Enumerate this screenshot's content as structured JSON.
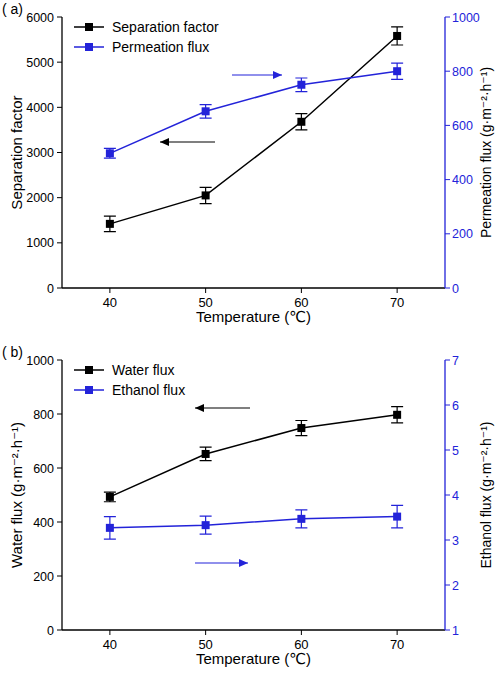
{
  "chart_data": [
    {
      "type": "line",
      "title": "( a)",
      "x_label": "Temperature (℃)",
      "y_label": "Separation factor",
      "y2_label": "Permeation flux (g·m⁻²·h⁻¹)",
      "x": [
        40,
        50,
        60,
        70
      ],
      "xlim": [
        35,
        75
      ],
      "xticks": [
        40,
        50,
        60,
        70
      ],
      "ylim": [
        0,
        6000
      ],
      "yticks": [
        0,
        1000,
        2000,
        3000,
        4000,
        5000,
        6000
      ],
      "y2lim": [
        0,
        1000
      ],
      "y2ticks": [
        0,
        200,
        400,
        600,
        800,
        1000
      ],
      "grid": false,
      "legend": "upper left",
      "series": [
        {
          "name": "Separation factor",
          "color": "#000000",
          "marker": "square",
          "line_style": "solid",
          "values": [
            1420,
            2050,
            3680,
            5580
          ],
          "errors": [
            170,
            180,
            180,
            200
          ]
        },
        {
          "name": "Permeation flux",
          "color": "#2323d9",
          "marker": "square",
          "line_style": "solid",
          "axis": "y2",
          "values": [
            497,
            652,
            750,
            800
          ],
          "errors": [
            18,
            25,
            25,
            30
          ]
        }
      ]
    },
    {
      "type": "line",
      "title": "( b)",
      "x_label": "Temperature (℃)",
      "y_label": "Water flux (g·m⁻²·h⁻¹)",
      "y2_label": "Ethanol flux (g·m⁻²·h⁻¹)",
      "x": [
        40,
        50,
        60,
        70
      ],
      "xlim": [
        35,
        75
      ],
      "xticks": [
        40,
        50,
        60,
        70
      ],
      "ylim": [
        0,
        1000
      ],
      "yticks": [
        0,
        200,
        400,
        600,
        800,
        1000
      ],
      "y2lim": [
        1,
        7
      ],
      "y2ticks": [
        1,
        2,
        3,
        4,
        5,
        6,
        7
      ],
      "grid": false,
      "legend": "upper left",
      "series": [
        {
          "name": "Water flux",
          "color": "#000000",
          "marker": "square",
          "line_style": "solid",
          "values": [
            493,
            652,
            748,
            797
          ],
          "errors": [
            18,
            25,
            28,
            30
          ]
        },
        {
          "name": "Ethanol flux",
          "color": "#2323d9",
          "marker": "square",
          "line_style": "solid",
          "axis": "y2",
          "values": [
            3.27,
            3.33,
            3.47,
            3.52
          ],
          "errors": [
            0.25,
            0.2,
            0.2,
            0.25
          ]
        }
      ]
    }
  ]
}
